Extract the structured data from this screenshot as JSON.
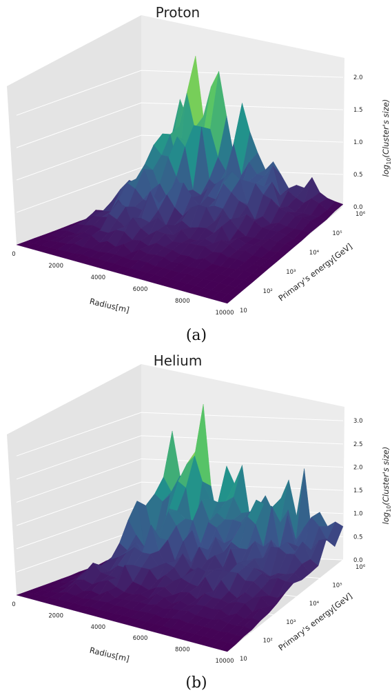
{
  "chart_data": [
    {
      "type": "surface",
      "title": "Proton",
      "caption": "(a)",
      "xlabel": "Radius[m]",
      "ylabel": "Primary's energy[GeV]",
      "zlabel": "log10(Cluster's size)",
      "zlabel_base": "log",
      "zlabel_sub": "10",
      "zlabel_rest": "(Cluster's size)",
      "x_ticks": [
        "0",
        "2000",
        "4000",
        "6000",
        "8000",
        "10000"
      ],
      "y_ticks": [
        "10",
        "10^2",
        "10^3",
        "10^4",
        "10^5",
        "10^6"
      ],
      "z_ticks": [
        "0.0",
        "0.5",
        "1.0",
        "1.5",
        "2.0"
      ],
      "xlim": [
        0,
        10000
      ],
      "ylim_log10": [
        1,
        6
      ],
      "zlim": [
        0,
        2.3
      ],
      "colormap": "viridis",
      "grid": true,
      "ridge_profile": [
        {
          "radius": 0,
          "log10_cluster_size": 0.05
        },
        {
          "radius": 500,
          "log10_cluster_size": 0.45
        },
        {
          "radius": 1000,
          "log10_cluster_size": 0.8
        },
        {
          "radius": 1500,
          "log10_cluster_size": 1.2
        },
        {
          "radius": 2000,
          "log10_cluster_size": 1.5
        },
        {
          "radius": 2500,
          "log10_cluster_size": 2.25
        },
        {
          "radius": 3000,
          "log10_cluster_size": 1.6
        },
        {
          "radius": 3500,
          "log10_cluster_size": 2.05
        },
        {
          "radius": 4000,
          "log10_cluster_size": 1.35
        },
        {
          "radius": 5000,
          "log10_cluster_size": 1.25
        },
        {
          "radius": 6000,
          "log10_cluster_size": 1.0
        },
        {
          "radius": 7000,
          "log10_cluster_size": 0.8
        },
        {
          "radius": 8000,
          "log10_cluster_size": 0.4
        },
        {
          "radius": 9000,
          "log10_cluster_size": 0.25
        },
        {
          "radius": 10000,
          "log10_cluster_size": 0.05
        }
      ]
    },
    {
      "type": "surface",
      "title": "Helium",
      "caption": "(b)",
      "xlabel": "Radius[m]",
      "ylabel": "Primary's energy[GeV]",
      "zlabel": "log10(Cluster's size)",
      "zlabel_base": "log",
      "zlabel_sub": "10",
      "zlabel_rest": "(Cluster's size)",
      "x_ticks": [
        "0",
        "2000",
        "4000",
        "6000",
        "8000",
        "10000"
      ],
      "y_ticks": [
        "10",
        "10^2",
        "10^3",
        "10^4",
        "10^5",
        "10^6"
      ],
      "z_ticks": [
        "0.0",
        "0.5",
        "1.0",
        "1.5",
        "2.0",
        "2.5",
        "3.0"
      ],
      "xlim": [
        0,
        10000
      ],
      "ylim_log10": [
        1,
        6
      ],
      "zlim": [
        0,
        3.3
      ],
      "colormap": "viridis",
      "grid": true,
      "ridge_profile": [
        {
          "radius": 0,
          "log10_cluster_size": 0.1
        },
        {
          "radius": 500,
          "log10_cluster_size": 0.5
        },
        {
          "radius": 1000,
          "log10_cluster_size": 1.0
        },
        {
          "radius": 1500,
          "log10_cluster_size": 2.6
        },
        {
          "radius": 2000,
          "log10_cluster_size": 1.6
        },
        {
          "radius": 2500,
          "log10_cluster_size": 2.0
        },
        {
          "radius": 3000,
          "log10_cluster_size": 3.2
        },
        {
          "radius": 3500,
          "log10_cluster_size": 1.9
        },
        {
          "radius": 4000,
          "log10_cluster_size": 1.5
        },
        {
          "radius": 5000,
          "log10_cluster_size": 1.55
        },
        {
          "radius": 6000,
          "log10_cluster_size": 1.6
        },
        {
          "radius": 7000,
          "log10_cluster_size": 1.9
        },
        {
          "radius": 8000,
          "log10_cluster_size": 1.5
        },
        {
          "radius": 9000,
          "log10_cluster_size": 1.2
        },
        {
          "radius": 10000,
          "log10_cluster_size": 0.9
        }
      ]
    }
  ]
}
